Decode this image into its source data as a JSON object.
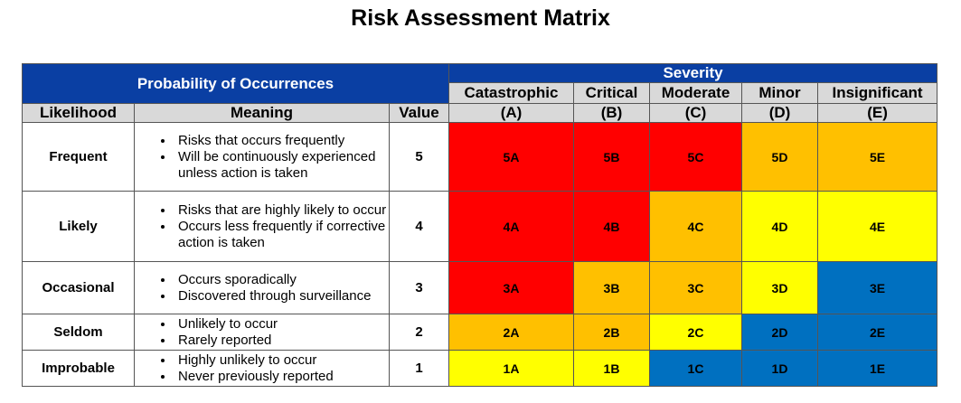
{
  "title": "Risk Assessment Matrix",
  "header": {
    "probability": "Probability of Occurrences",
    "severity": "Severity",
    "likelihood": "Likelihood",
    "meaning": "Meaning",
    "value": "Value"
  },
  "severity_columns": [
    {
      "name": "Catastrophic",
      "code": "(A)"
    },
    {
      "name": "Critical",
      "code": "(B)"
    },
    {
      "name": "Moderate",
      "code": "(C)"
    },
    {
      "name": "Minor",
      "code": "(D)"
    },
    {
      "name": "Insignificant",
      "code": "(E)"
    }
  ],
  "rows": [
    {
      "likelihood": "Frequent",
      "meaning": [
        "Risks that occurs frequently",
        "Will be continuously experienced unless action is taken"
      ],
      "value": "5",
      "cells": [
        {
          "label": "5A",
          "level": "red"
        },
        {
          "label": "5B",
          "level": "red"
        },
        {
          "label": "5C",
          "level": "red"
        },
        {
          "label": "5D",
          "level": "orange"
        },
        {
          "label": "5E",
          "level": "orange"
        }
      ]
    },
    {
      "likelihood": "Likely",
      "meaning": [
        "Risks that are highly likely to occur",
        "Occurs less frequently if corrective action is taken"
      ],
      "value": "4",
      "cells": [
        {
          "label": "4A",
          "level": "red"
        },
        {
          "label": "4B",
          "level": "red"
        },
        {
          "label": "4C",
          "level": "orange"
        },
        {
          "label": "4D",
          "level": "yellow"
        },
        {
          "label": "4E",
          "level": "yellow"
        }
      ]
    },
    {
      "likelihood": "Occasional",
      "meaning": [
        "Occurs sporadically",
        "Discovered through surveillance"
      ],
      "value": "3",
      "cells": [
        {
          "label": "3A",
          "level": "red"
        },
        {
          "label": "3B",
          "level": "orange"
        },
        {
          "label": "3C",
          "level": "orange"
        },
        {
          "label": "3D",
          "level": "yellow"
        },
        {
          "label": "3E",
          "level": "blue"
        }
      ]
    },
    {
      "likelihood": "Seldom",
      "meaning": [
        "Unlikely to occur",
        "Rarely reported"
      ],
      "value": "2",
      "cells": [
        {
          "label": "2A",
          "level": "orange"
        },
        {
          "label": "2B",
          "level": "orange"
        },
        {
          "label": "2C",
          "level": "yellow"
        },
        {
          "label": "2D",
          "level": "blue"
        },
        {
          "label": "2E",
          "level": "blue"
        }
      ]
    },
    {
      "likelihood": "Improbable",
      "meaning": [
        "Highly unlikely to occur",
        "Never previously reported"
      ],
      "value": "1",
      "cells": [
        {
          "label": "1A",
          "level": "yellow"
        },
        {
          "label": "1B",
          "level": "yellow"
        },
        {
          "label": "1C",
          "level": "blue"
        },
        {
          "label": "1D",
          "level": "blue"
        },
        {
          "label": "1E",
          "level": "blue"
        }
      ]
    }
  ],
  "colors": {
    "header_blue": "#0a3fa3",
    "header_gray": "#d9d9d9",
    "red": "#ff0000",
    "orange": "#ffc000",
    "yellow": "#ffff00",
    "blue": "#0070c0"
  }
}
